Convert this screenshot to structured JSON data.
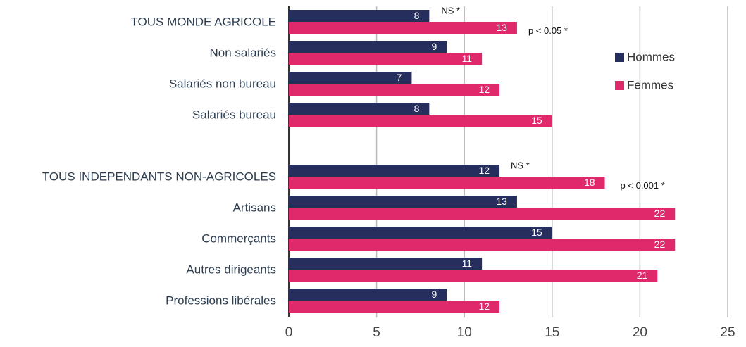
{
  "chart_data": {
    "type": "hbar",
    "categories": [
      "TOUS MONDE AGRICOLE",
      "Non salariés",
      "Salariés non bureau",
      "Salariés bureau",
      null,
      "TOUS INDEPENDANTS NON-AGRICOLES",
      "Artisans",
      "Commerçants",
      "Autres dirigeants",
      "Professions libérales"
    ],
    "series": [
      {
        "name": "Hommes",
        "color": "#262e5e",
        "values": [
          8,
          9,
          7,
          8,
          null,
          12,
          13,
          15,
          11,
          9
        ]
      },
      {
        "name": "Femmes",
        "color": "#e0296b",
        "values": [
          13,
          11,
          12,
          15,
          null,
          18,
          22,
          22,
          21,
          12
        ]
      }
    ],
    "annotations": [
      "NS *",
      "p < 0.05 *",
      "NS *",
      "p < 0.001 *"
    ],
    "xlim": [
      0,
      25
    ],
    "xticks": [
      0,
      5,
      10,
      15,
      20,
      25
    ],
    "grid": true,
    "legend": "upper right"
  }
}
